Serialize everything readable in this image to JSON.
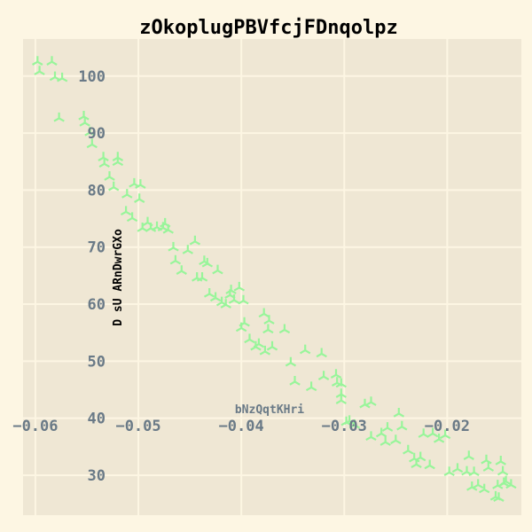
{
  "chart_data": {
    "type": "scatter",
    "title": "zOkoplugPBVfcjFDnqolpz",
    "xlabel": "bNzQqtKHri",
    "ylabel": "D sU ARnDwrGXo",
    "x_ticks": [
      "−0.06",
      "−0.05",
      "−0.04",
      "−0.03",
      "−0.02"
    ],
    "y_ticks": [
      "30",
      "40",
      "50",
      "60",
      "70",
      "80",
      "90",
      "100"
    ],
    "xlim": [
      -0.0612,
      -0.0128
    ],
    "ylim": [
      23.0,
      106.5
    ],
    "grid": true,
    "marker": "tri",
    "colors": {
      "background": "#fdf6e3",
      "plot_bg": "#efe7d4",
      "grid": "#fdf6e3",
      "points": "#98f59a",
      "ticks": "#6a7a87",
      "ylabel": "#000000",
      "xlabel": "#6a7a87"
    },
    "points": [
      [
        -0.0598,
        102.5
      ],
      [
        -0.0596,
        100.8
      ],
      [
        -0.0584,
        102.5
      ],
      [
        -0.0581,
        99.8
      ],
      [
        -0.0574,
        99.6
      ],
      [
        -0.0577,
        92.6
      ],
      [
        -0.0553,
        92.9
      ],
      [
        -0.0552,
        91.8
      ],
      [
        -0.0547,
        90.1
      ],
      [
        -0.0545,
        88.0
      ],
      [
        -0.0534,
        85.7
      ],
      [
        -0.0533,
        84.6
      ],
      [
        -0.0528,
        82.3
      ],
      [
        -0.0524,
        80.5
      ],
      [
        -0.052,
        85.7
      ],
      [
        -0.052,
        84.9
      ],
      [
        -0.0511,
        79.2
      ],
      [
        -0.0504,
        81.1
      ],
      [
        -0.0498,
        80.9
      ],
      [
        -0.0499,
        78.4
      ],
      [
        -0.0512,
        76.2
      ],
      [
        -0.0506,
        75.1
      ],
      [
        -0.0496,
        73.3
      ],
      [
        -0.0491,
        74.3
      ],
      [
        -0.0488,
        73.3
      ],
      [
        -0.0482,
        73.5
      ],
      [
        -0.0476,
        73.4
      ],
      [
        -0.0474,
        74.1
      ],
      [
        -0.0471,
        73.0
      ],
      [
        -0.0466,
        69.9
      ],
      [
        -0.0464,
        67.6
      ],
      [
        -0.0458,
        65.8
      ],
      [
        -0.0452,
        69.4
      ],
      [
        -0.0445,
        71.0
      ],
      [
        -0.0443,
        64.6
      ],
      [
        -0.0438,
        64.6
      ],
      [
        -0.0436,
        67.5
      ],
      [
        -0.0433,
        67.1
      ],
      [
        -0.0431,
        61.8
      ],
      [
        -0.0425,
        61.1
      ],
      [
        -0.0423,
        65.9
      ],
      [
        -0.0419,
        60.3
      ],
      [
        -0.0415,
        59.9
      ],
      [
        -0.0411,
        61.6
      ],
      [
        -0.041,
        62.4
      ],
      [
        -0.0407,
        60.7
      ],
      [
        -0.0402,
        62.9
      ],
      [
        -0.0398,
        60.6
      ],
      [
        -0.04,
        55.8
      ],
      [
        -0.0397,
        56.7
      ],
      [
        -0.0392,
        53.8
      ],
      [
        -0.0386,
        52.5
      ],
      [
        -0.0383,
        53.0
      ],
      [
        -0.0378,
        58.3
      ],
      [
        -0.0377,
        51.7
      ],
      [
        -0.0374,
        55.5
      ],
      [
        -0.0373,
        57.1
      ],
      [
        -0.037,
        52.5
      ],
      [
        -0.0358,
        55.5
      ],
      [
        -0.0352,
        49.7
      ],
      [
        -0.0348,
        46.4
      ],
      [
        -0.0338,
        51.9
      ],
      [
        -0.0332,
        45.4
      ],
      [
        -0.0322,
        51.3
      ],
      [
        -0.032,
        47.3
      ],
      [
        -0.0308,
        47.6
      ],
      [
        -0.0307,
        46.2
      ],
      [
        -0.0303,
        46.0
      ],
      [
        -0.0303,
        44.2
      ],
      [
        -0.0303,
        43.1
      ],
      [
        -0.0298,
        39.3
      ],
      [
        -0.0295,
        39.5
      ],
      [
        -0.029,
        38.8
      ],
      [
        -0.028,
        42.4
      ],
      [
        -0.0274,
        42.8
      ],
      [
        -0.0274,
        36.7
      ],
      [
        -0.0264,
        37.3
      ],
      [
        -0.026,
        35.8
      ],
      [
        -0.0258,
        38.3
      ],
      [
        -0.025,
        36.1
      ],
      [
        -0.0247,
        40.8
      ],
      [
        -0.0244,
        38.5
      ],
      [
        -0.0238,
        34.3
      ],
      [
        -0.0232,
        32.9
      ],
      [
        -0.023,
        31.9
      ],
      [
        -0.0226,
        33.1
      ],
      [
        -0.0223,
        37.2
      ],
      [
        -0.0217,
        31.7
      ],
      [
        -0.0214,
        37.3
      ],
      [
        -0.0208,
        36.3
      ],
      [
        -0.0202,
        37.0
      ],
      [
        -0.0198,
        30.5
      ],
      [
        -0.019,
        31.1
      ],
      [
        -0.0181,
        30.6
      ],
      [
        -0.0179,
        33.3
      ],
      [
        -0.0174,
        30.5
      ],
      [
        -0.0176,
        27.9
      ],
      [
        -0.017,
        28.3
      ],
      [
        -0.0164,
        27.5
      ],
      [
        -0.0162,
        32.6
      ],
      [
        -0.016,
        31.3
      ],
      [
        -0.0153,
        26.2
      ],
      [
        -0.015,
        26.0
      ],
      [
        -0.0151,
        28.2
      ],
      [
        -0.0148,
        32.4
      ],
      [
        -0.0146,
        30.6
      ],
      [
        -0.0145,
        28.6
      ],
      [
        -0.0143,
        28.9
      ],
      [
        -0.0138,
        28.3
      ]
    ]
  }
}
